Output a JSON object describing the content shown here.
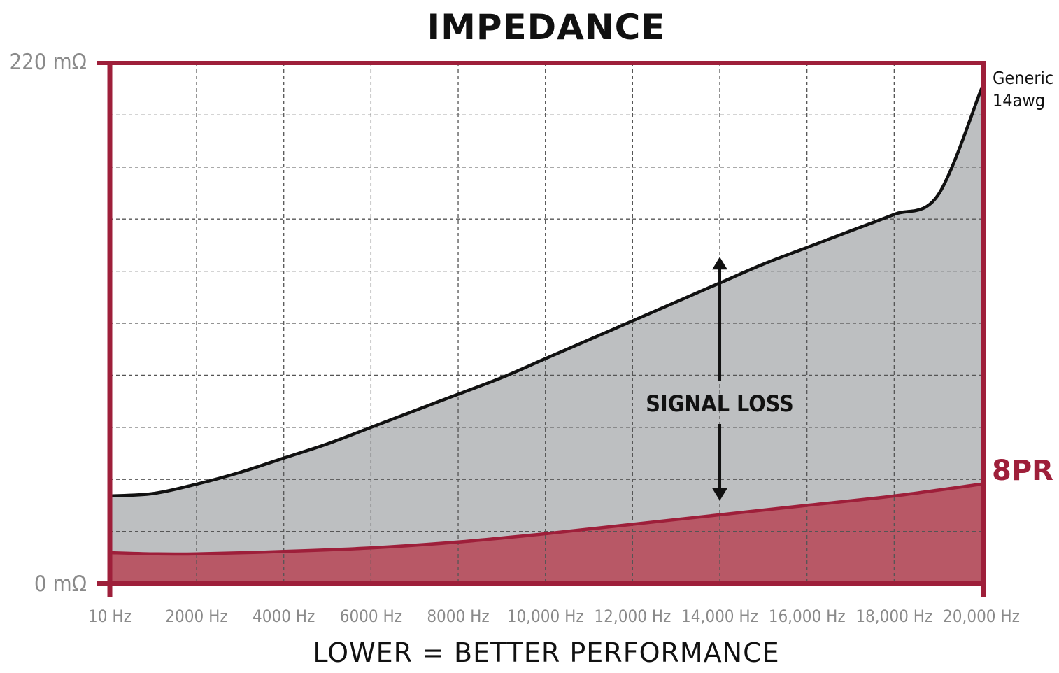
{
  "chart_data": {
    "type": "area",
    "title": "IMPEDANCE",
    "caption": "LOWER = BETTER PERFORMANCE",
    "y_axis": {
      "min_label": "0 mΩ",
      "max_label": "220 mΩ",
      "ylim": [
        0,
        220
      ],
      "unit": "mΩ"
    },
    "x_axis": {
      "xlim": [
        10,
        20000
      ],
      "unit": "Hz",
      "ticks": [
        {
          "value": 10,
          "label": "10 Hz"
        },
        {
          "value": 2000,
          "label": "2000 Hz"
        },
        {
          "value": 4000,
          "label": "4000 Hz"
        },
        {
          "value": 6000,
          "label": "6000 Hz"
        },
        {
          "value": 8000,
          "label": "8000 Hz"
        },
        {
          "value": 10000,
          "label": "10,000 Hz"
        },
        {
          "value": 12000,
          "label": "12,000 Hz"
        },
        {
          "value": 14000,
          "label": "14,000 Hz"
        },
        {
          "value": 16000,
          "label": "16,000 Hz"
        },
        {
          "value": 18000,
          "label": "18,000 Hz"
        },
        {
          "value": 20000,
          "label": "20,000 Hz"
        }
      ]
    },
    "grid": true,
    "y_grid_step": 22,
    "series": [
      {
        "name": "Generic 14awg",
        "label_lines": [
          "Generic",
          "14awg"
        ],
        "color": "#111111",
        "fill": "#bdbfc1",
        "x": [
          10,
          1000,
          2000,
          3000,
          4000,
          5000,
          6000,
          7000,
          8000,
          9000,
          10000,
          11000,
          12000,
          13000,
          14000,
          15000,
          16000,
          17000,
          18000,
          19000,
          20000
        ],
        "y": [
          37,
          38,
          42,
          47,
          53,
          59,
          66,
          73,
          80,
          87,
          95,
          103,
          111,
          119,
          127,
          135,
          142,
          149,
          156,
          164,
          209
        ]
      },
      {
        "name": "8PR",
        "label_lines": [
          "8PR"
        ],
        "color": "#9e1f3a",
        "fill": "#b85866",
        "x": [
          10,
          1000,
          2000,
          4000,
          6000,
          8000,
          10000,
          12000,
          14000,
          16000,
          18000,
          20000
        ],
        "y": [
          13,
          12.5,
          12.5,
          13.5,
          15,
          17.5,
          21,
          25,
          29,
          33,
          37,
          42
        ]
      }
    ],
    "annotation": {
      "text": "SIGNAL LOSS",
      "x": 14000,
      "y_from": 35,
      "y_to": 138
    },
    "colors": {
      "frame": "#9e1f3a",
      "grid": "#555555",
      "tick_text": "#8a8a8a"
    }
  }
}
